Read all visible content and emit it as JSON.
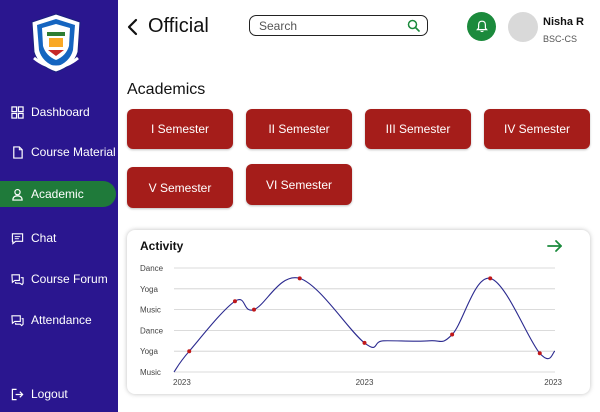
{
  "header": {
    "title": "Official",
    "search_placeholder": "Search",
    "user_name": "Nisha  R",
    "user_sub": "BSC-CS"
  },
  "sidebar": {
    "items": [
      {
        "label": "Dashboard",
        "icon": "grid-icon"
      },
      {
        "label": "Course Material",
        "icon": "document-icon"
      },
      {
        "label": "Academic",
        "icon": "user-icon"
      },
      {
        "label": "Chat",
        "icon": "chat-icon"
      },
      {
        "label": "Course Forum",
        "icon": "forum-icon"
      },
      {
        "label": "Attendance",
        "icon": "attendance-icon"
      }
    ],
    "logout": "Logout",
    "active_color": "#1f7a3a",
    "bg_color": "#2a168f"
  },
  "academics": {
    "title": "Academics",
    "semesters": [
      "I  Semester",
      "II  Semester",
      "III Semester",
      "IV Semester",
      "V  Semester",
      "VI  Semester"
    ],
    "button_color": "#a51d1a"
  },
  "activity": {
    "title": "Activity"
  },
  "chart_data": {
    "type": "line",
    "y_categories": [
      "Music",
      "Yoga",
      "Dance",
      "Music",
      "Yoga",
      "Dance"
    ],
    "x_tick_labels": [
      "2023",
      "2023",
      "2023"
    ],
    "points": [
      {
        "x": 0.0,
        "y": 0.0
      },
      {
        "x": 0.04,
        "y": 1.0
      },
      {
        "x": 0.16,
        "y": 3.4
      },
      {
        "x": 0.21,
        "y": 3.0
      },
      {
        "x": 0.33,
        "y": 4.5
      },
      {
        "x": 0.5,
        "y": 1.4
      },
      {
        "x": 0.55,
        "y": 1.5
      },
      {
        "x": 0.67,
        "y": 1.5
      },
      {
        "x": 0.73,
        "y": 1.8
      },
      {
        "x": 0.83,
        "y": 4.5
      },
      {
        "x": 0.96,
        "y": 0.9
      },
      {
        "x": 1.0,
        "y": 1.0
      }
    ],
    "markers": [
      1,
      2,
      3,
      4,
      5,
      8,
      9,
      10
    ],
    "line_color": "#2b2a8f",
    "marker_color": "#c0181a",
    "grid": true
  }
}
